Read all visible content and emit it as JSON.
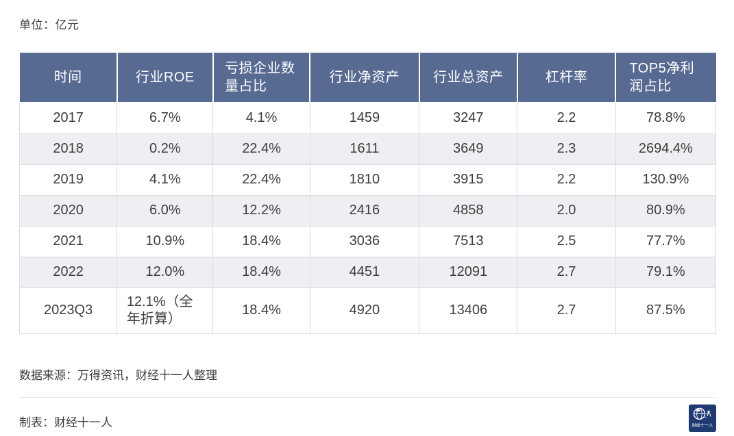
{
  "page": {
    "unit_label": "单位：亿元",
    "source_note": "数据来源：万得资讯，财经十一人整理",
    "credit_note": "制表：财经十一人",
    "logo_text": "财经十一人"
  },
  "colors": {
    "header_bg": "#576a92",
    "row_alt_bg": "#edeff3",
    "border": "#d9dce2",
    "logo_bg": "#1f3b74",
    "text": "#3b3b3b"
  },
  "chart_data": {
    "type": "table",
    "unit": "亿元",
    "columns": [
      "时间",
      "行业ROE",
      "亏损企业数量占比",
      "行业净资产",
      "行业总资产",
      "杠杆率",
      "TOP5净利润占比"
    ],
    "rows": [
      [
        "2017",
        "6.7%",
        "4.1%",
        "1459",
        "3247",
        "2.2",
        "78.8%"
      ],
      [
        "2018",
        "0.2%",
        "22.4%",
        "1611",
        "3649",
        "2.3",
        "2694.4%"
      ],
      [
        "2019",
        "4.1%",
        "22.4%",
        "1810",
        "3915",
        "2.2",
        "130.9%"
      ],
      [
        "2020",
        "6.0%",
        "12.2%",
        "2416",
        "4858",
        "2.0",
        "80.9%"
      ],
      [
        "2021",
        "10.9%",
        "18.4%",
        "3036",
        "7513",
        "2.5",
        "77.7%"
      ],
      [
        "2022",
        "12.0%",
        "18.4%",
        "4451",
        "12091",
        "2.7",
        "79.1%"
      ],
      [
        "2023Q3",
        "12.1%（全年折算）",
        "18.4%",
        "4920",
        "13406",
        "2.7",
        "87.5%"
      ]
    ],
    "source": "数据来源：万得资讯，财经十一人整理",
    "creator": "制表：财经十一人"
  }
}
